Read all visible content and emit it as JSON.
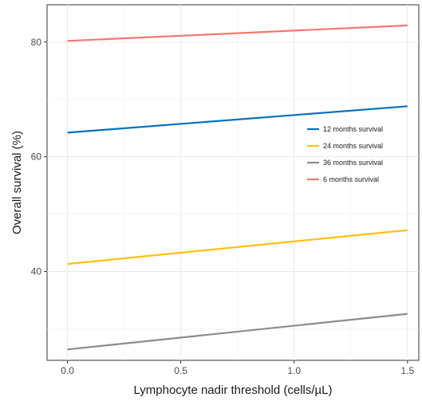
{
  "chart_data": {
    "type": "line",
    "title": "",
    "xlabel": "Lymphocyte nadir threshold (cells/µL)",
    "ylabel": "Overall survival (%)",
    "xlim": [
      -0.09,
      1.55
    ],
    "ylim": [
      24.5,
      86.5
    ],
    "x_ticks": [
      0.0,
      0.5,
      1.0,
      1.5
    ],
    "x_tick_labels": [
      "0.0",
      "0.5",
      "1.0",
      "1.5"
    ],
    "y_ticks": [
      40,
      60,
      80
    ],
    "y_tick_labels": [
      "40",
      "60",
      "80"
    ],
    "grid": true,
    "legend_position": "right",
    "series": [
      {
        "name": "12 months survival",
        "color": "#0072BD",
        "x": [
          0.0,
          1.5
        ],
        "values": [
          64.2,
          68.8
        ]
      },
      {
        "name": "24 months survival",
        "color": "#FFC20A",
        "x": [
          0.0,
          1.5
        ],
        "values": [
          41.3,
          47.2
        ]
      },
      {
        "name": "36 months survival",
        "color": "#8C8C8C",
        "x": [
          0.0,
          1.5
        ],
        "values": [
          26.4,
          32.6
        ]
      },
      {
        "name": "6 months survival",
        "color": "#F8766D",
        "x": [
          0.0,
          1.5
        ],
        "values": [
          80.2,
          82.9
        ]
      }
    ]
  }
}
